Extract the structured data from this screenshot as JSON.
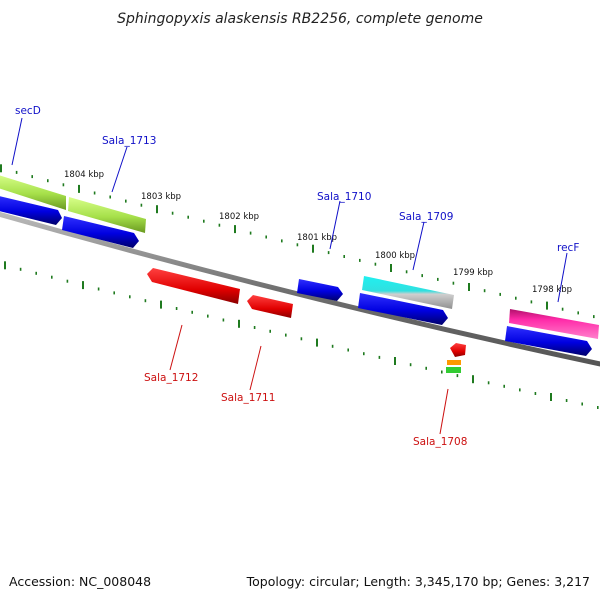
{
  "title": "Sphingopyxis alaskensis RB2256, complete genome",
  "footer": {
    "accession": "Accession: NC_008048",
    "summary": "Topology: circular; Length: 3,345,170 bp; Genes: 3,217"
  },
  "colors": {
    "backbone": "#8a8a8a",
    "tick": "#1f7a1f",
    "forward_label": "#1010c8",
    "reverse_label": "#cc1010",
    "cds_blue": "#0a0ae6",
    "secD_green": "#9ae040",
    "sala1713_green": "#b4ec50",
    "sala1709_cyan": "#30f0f0",
    "recF_pink": "#ff2aa8",
    "gene_red": "#ee1010",
    "rna_orange": "#ff9900",
    "rna_green": "#33cc33"
  },
  "kbp_markers": [
    {
      "label": "1804 kbp"
    },
    {
      "label": "1803 kbp"
    },
    {
      "label": "1802 kbp"
    },
    {
      "label": "1801 kbp"
    },
    {
      "label": "1800 kbp"
    },
    {
      "label": "1799 kbp"
    },
    {
      "label": "1798 kbp"
    }
  ],
  "genes": [
    {
      "name": "secD",
      "strand": "forward"
    },
    {
      "name": "Sala_1713",
      "strand": "forward"
    },
    {
      "name": "Sala_1710",
      "strand": "forward"
    },
    {
      "name": "Sala_1709",
      "strand": "forward"
    },
    {
      "name": "recF",
      "strand": "forward"
    },
    {
      "name": "Sala_1712",
      "strand": "reverse"
    },
    {
      "name": "Sala_1711",
      "strand": "reverse"
    },
    {
      "name": "Sala_1708",
      "strand": "reverse"
    }
  ]
}
